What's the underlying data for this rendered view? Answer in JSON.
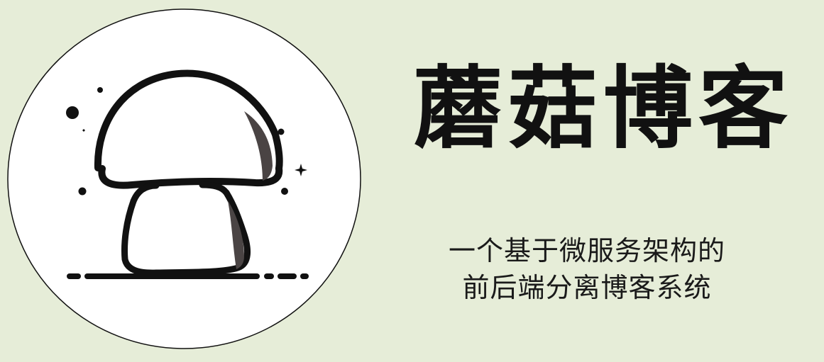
{
  "brand": {
    "title": "蘑菇博客",
    "subtitle_line_1": "一个基于微服务架构的",
    "subtitle_line_2": "前后端分离博客系统"
  },
  "colors": {
    "background": "#e6edd8",
    "circle_fill": "#ffffff",
    "ink": "#111111",
    "shadow": "#4a4444"
  },
  "icons": {
    "logo": "mushroom-logo-icon"
  }
}
